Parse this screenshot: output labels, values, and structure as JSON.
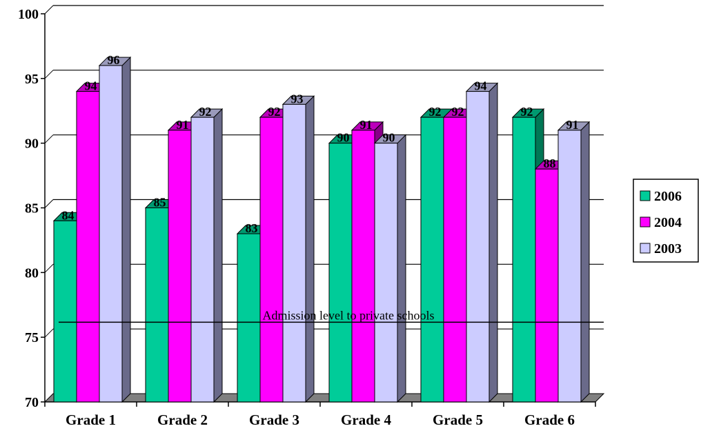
{
  "chart_data": {
    "type": "bar",
    "categories": [
      "Grade 1",
      "Grade 2",
      "Grade 3",
      "Grade 4",
      "Grade 5",
      "Grade 6"
    ],
    "series": [
      {
        "name": "2006",
        "values": [
          84,
          85,
          83,
          90,
          92,
          92
        ],
        "color": "#00cc99",
        "side_color": "#007755",
        "top_color": "#009970"
      },
      {
        "name": "2004",
        "values": [
          94,
          91,
          92,
          91,
          92,
          88
        ],
        "color": "#ff00ff",
        "side_color": "#880088",
        "top_color": "#bb00bb"
      },
      {
        "name": "2003",
        "values": [
          96,
          92,
          93,
          90,
          94,
          91
        ],
        "color": "#ccccff",
        "side_color": "#6a6a8a",
        "top_color": "#9a9abb"
      }
    ],
    "ylim": [
      70,
      100
    ],
    "yticks": [
      70,
      75,
      80,
      85,
      90,
      95,
      100
    ],
    "ytick_labels": [
      "70",
      "75",
      "80",
      "85",
      "90",
      "95",
      "100"
    ],
    "grid": true,
    "legend_position": "right",
    "annotation": {
      "text": "Admission level to private schools",
      "value": 76
    },
    "title": "",
    "xlabel": "",
    "ylabel": ""
  }
}
